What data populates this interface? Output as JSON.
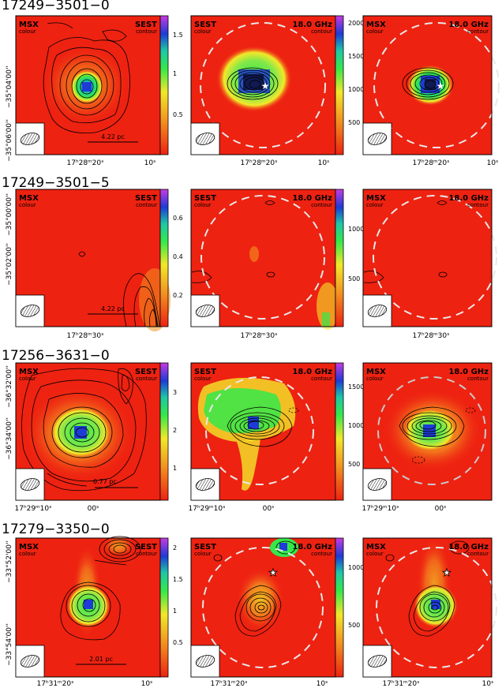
{
  "figure": {
    "rows": [
      {
        "title": "17249−3501−0",
        "y_ticks": [
          "−35°04'00''",
          "−35°06'00''"
        ],
        "x_ticks": [
          [
            "17ʰ28ᵐ20ˢ",
            "10ˢ"
          ],
          [
            "17ʰ28ᵐ20ˢ",
            "10ˢ"
          ],
          [
            "17ʰ28ᵐ20ˢ",
            "10ˢ"
          ]
        ],
        "scale_bar": "4.22 pc",
        "panels": [
          {
            "tl": "MSX",
            "tl_sub": "colour",
            "tr": "SEST",
            "tr_sub": "contour"
          },
          {
            "tl": "SEST",
            "tl_sub": "colour",
            "tr": "18.0 GHz",
            "tr_sub": "contour"
          },
          {
            "tl": "MSX",
            "tl_sub": "colour",
            "tr": "18.0 GHz",
            "tr_sub": "contour"
          }
        ],
        "colorbars": [
          {
            "min": 0,
            "max": 1.7,
            "ticks": [
              "1.5",
              "1",
              "0.5"
            ]
          },
          {
            "min": 0,
            "max": 2100,
            "ticks": [
              "2000",
              "1500",
              "1000",
              "500"
            ]
          }
        ]
      },
      {
        "title": "17249−3501−5",
        "y_ticks": [
          "−35°00'00''",
          "−35°02'00''"
        ],
        "x_ticks": [
          [
            "17ʰ28ᵐ30ˢ"
          ],
          [
            "17ʰ28ᵐ30ˢ"
          ],
          [
            "17ʰ28ᵐ30ˢ"
          ]
        ],
        "scale_bar": "4.22 pc",
        "panels": [
          {
            "tl": "MSX",
            "tl_sub": "colour",
            "tr": "SEST",
            "tr_sub": "contour"
          },
          {
            "tl": "SEST",
            "tl_sub": "colour",
            "tr": "18.0 GHz",
            "tr_sub": "contour"
          },
          {
            "tl": "MSX",
            "tl_sub": "colour",
            "tr": "18.0 GHz",
            "tr_sub": "contour"
          }
        ],
        "colorbars": [
          {
            "min": 0,
            "max": 0.7,
            "ticks": [
              "0.6",
              "0.4",
              "0.2"
            ]
          },
          {
            "min": 0,
            "max": 1400,
            "ticks": [
              "1000",
              "500"
            ]
          }
        ]
      },
      {
        "title": "17256−3631−0",
        "y_ticks": [
          "−36°32'00''",
          "−36°34'00''"
        ],
        "x_ticks": [
          [
            "17ʰ29ᵐ10ˢ",
            "00ˢ"
          ],
          [
            "17ʰ29ᵐ10ˢ",
            "00ˢ"
          ],
          [
            "17ʰ29ᵐ10ˢ",
            "00ˢ"
          ]
        ],
        "scale_bar": "0.77 pc",
        "panels": [
          {
            "tl": "MSX",
            "tl_sub": "colour",
            "tr": "SEST",
            "tr_sub": "contour"
          },
          {
            "tl": "SEST",
            "tl_sub": "colour",
            "tr": "18.0 GHz",
            "tr_sub": "contour"
          },
          {
            "tl": "MSX",
            "tl_sub": "colour",
            "tr": "18.0 GHz",
            "tr_sub": "contour"
          }
        ],
        "colorbars": [
          {
            "min": 0,
            "max": 3.6,
            "ticks": [
              "3",
              "2",
              "1"
            ]
          },
          {
            "min": 0,
            "max": 1800,
            "ticks": [
              "1500",
              "1000",
              "500"
            ]
          }
        ]
      },
      {
        "title": "17279−3350−0",
        "y_ticks": [
          "−33°52'00''",
          "−33°54'00''"
        ],
        "x_ticks": [
          [
            "17ʰ31ᵐ20ˢ",
            "10ˢ"
          ],
          [
            "17ʰ31ᵐ20ˢ",
            "10ˢ"
          ],
          [
            "17ʰ31ᵐ20ˢ",
            "10ˢ"
          ]
        ],
        "scale_bar": "2.01 pc",
        "panels": [
          {
            "tl": "MSX",
            "tl_sub": "colour",
            "tr": "SEST",
            "tr_sub": "contour"
          },
          {
            "tl": "SEST",
            "tl_sub": "colour",
            "tr": "18.0 GHz",
            "tr_sub": "contour"
          },
          {
            "tl": "MSX",
            "tl_sub": "colour",
            "tr": "18.0 GHz",
            "tr_sub": "contour"
          }
        ],
        "colorbars": [
          {
            "min": 0,
            "max": 2.2,
            "ticks": [
              "2",
              "1.5",
              "1",
              "0.5"
            ]
          },
          {
            "min": 0,
            "max": 1300,
            "ticks": [
              "1000",
              "500"
            ]
          }
        ]
      }
    ]
  },
  "colors": {
    "background_red": "#ee2211",
    "peak_blue": "#1e3bd6",
    "green": "#35e84a",
    "yellow": "#f2e82a",
    "orange": "#f39421",
    "beam_circle": "#e8e8e8"
  }
}
